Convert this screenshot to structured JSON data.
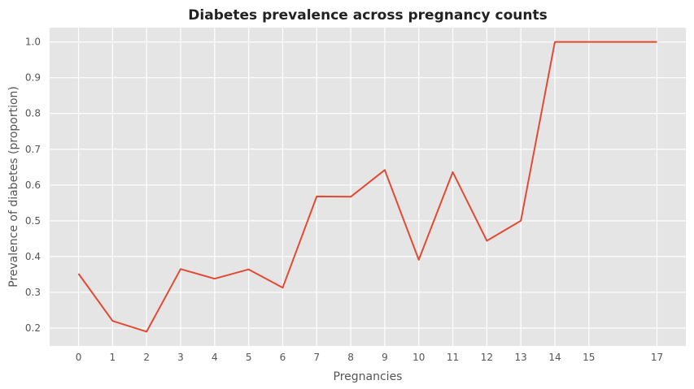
{
  "chart_data": {
    "type": "line",
    "title": "Diabetes prevalence across pregnancy counts",
    "xlabel": "Pregnancies",
    "ylabel": "Prevalence of diabetes (proportion)",
    "x": [
      0,
      1,
      2,
      3,
      4,
      5,
      6,
      7,
      8,
      9,
      10,
      11,
      12,
      13,
      14,
      15,
      17
    ],
    "values": [
      0.352,
      0.22,
      0.19,
      0.365,
      0.338,
      0.364,
      0.313,
      0.568,
      0.567,
      0.642,
      0.391,
      0.636,
      0.444,
      0.5,
      1.0,
      1.0,
      1.0
    ],
    "x_ticks": [
      "0",
      "1",
      "2",
      "3",
      "4",
      "5",
      "6",
      "7",
      "8",
      "9",
      "10",
      "11",
      "12",
      "13",
      "14",
      "15",
      "17"
    ],
    "y_ticks": [
      "0.2",
      "0.3",
      "0.4",
      "0.5",
      "0.6",
      "0.7",
      "0.8",
      "0.9",
      "1.0"
    ],
    "xlim": [
      -0.85,
      17.85
    ],
    "ylim": [
      0.15,
      1.04
    ],
    "grid": true,
    "line_color": "#E24A33",
    "plot_background": "#E5E5E5",
    "grid_color": "#FFFFFF"
  }
}
